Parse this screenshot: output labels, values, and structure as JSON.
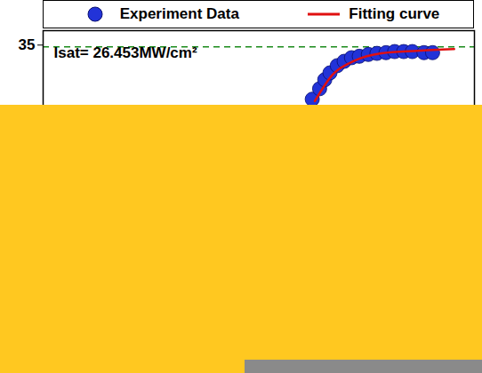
{
  "chart_data": {
    "type": "scatter",
    "xlim": [
      0,
      100
    ],
    "ylim": [
      26,
      35.4
    ],
    "yticks": [
      35
    ],
    "tick_labels": "y",
    "grid": false,
    "legend": "top",
    "series": [
      {
        "name": "Experiment Data",
        "type": "scatter",
        "color": "#2233d8",
        "marker": "circle",
        "x": [
          62.4,
          64.1,
          65.3,
          66.5,
          68.2,
          69.8,
          71.5,
          73.3,
          75.4,
          77.4,
          79.5,
          81.5,
          83.6,
          85.6,
          88.3,
          90.3
        ],
        "values": [
          33.5,
          33.79,
          34.04,
          34.23,
          34.43,
          34.55,
          34.65,
          34.69,
          34.74,
          34.77,
          34.79,
          34.82,
          34.82,
          34.82,
          34.79,
          34.79
        ]
      },
      {
        "name": "Fitting curve",
        "type": "line",
        "color": "#e01010",
        "line_style": "solid",
        "x": [
          63.0,
          67.1,
          72.3,
          78.4,
          86.7,
          95.3
        ],
        "values": [
          33.45,
          34.18,
          34.57,
          34.77,
          34.84,
          34.89
        ]
      }
    ],
    "reference_line": {
      "value": 34.95,
      "color": "#1a8a1a",
      "line_style": "dashed"
    },
    "annotations": [
      {
        "text": "Isat= 26.453MW/cm²"
      }
    ]
  }
}
